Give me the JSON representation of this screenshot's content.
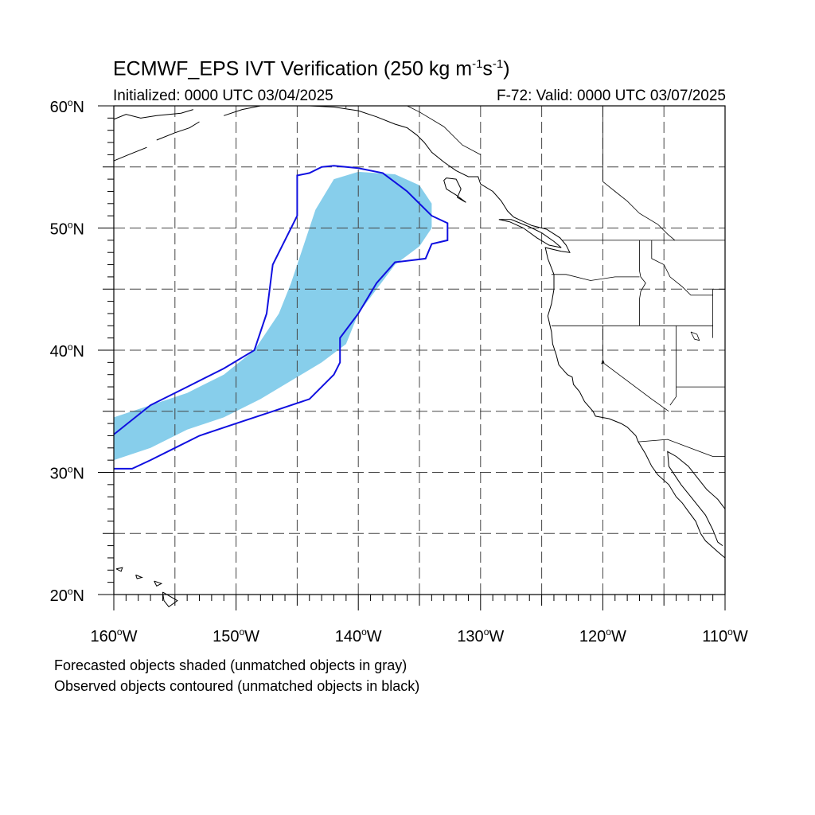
{
  "title": {
    "main": "ECMWF_EPS IVT Verification (250 kg m",
    "exp1": "-1",
    "mid": "s",
    "exp2": "-1",
    "end": ")"
  },
  "initialized": "Initialized: 0000 UTC 03/04/2025",
  "valid": "F-72: Valid: 0000 UTC 03/07/2025",
  "lat_labels": [
    {
      "lat": 60,
      "text": "60",
      "unit": "o",
      "hemi": "N"
    },
    {
      "lat": 50,
      "text": "50",
      "unit": "o",
      "hemi": "N"
    },
    {
      "lat": 40,
      "text": "40",
      "unit": "o",
      "hemi": "N"
    },
    {
      "lat": 30,
      "text": "30",
      "unit": "o",
      "hemi": "N"
    },
    {
      "lat": 20,
      "text": "20",
      "unit": "o",
      "hemi": "N"
    }
  ],
  "lon_labels": [
    {
      "lon": -160,
      "text": "160",
      "unit": "o",
      "hemi": "W"
    },
    {
      "lon": -150,
      "text": "150",
      "unit": "o",
      "hemi": "W"
    },
    {
      "lon": -140,
      "text": "140",
      "unit": "o",
      "hemi": "W"
    },
    {
      "lon": -130,
      "text": "130",
      "unit": "o",
      "hemi": "W"
    },
    {
      "lon": -120,
      "text": "120",
      "unit": "o",
      "hemi": "W"
    },
    {
      "lon": -110,
      "text": "110",
      "unit": "o",
      "hemi": "W"
    }
  ],
  "footnote_1": "Forecasted objects shaded (unmatched objects in gray)",
  "footnote_2": "Observed objects contoured (unmatched objects in black)",
  "colors": {
    "forecast_fill": "#87CEEB",
    "observed_contour": "#1010E0",
    "coastline": "#000000",
    "grid": "#444444"
  },
  "map_extent": {
    "lon_min": -160,
    "lon_max": -110,
    "lat_min": 20,
    "lat_max": 60
  },
  "forecast_object": [
    [
      -160,
      31
    ],
    [
      -160,
      34.5
    ],
    [
      -157,
      35.5
    ],
    [
      -154,
      36.5
    ],
    [
      -151,
      38
    ],
    [
      -148.5,
      40
    ],
    [
      -146.5,
      43
    ],
    [
      -145.5,
      45.5
    ],
    [
      -144.5,
      48.5
    ],
    [
      -143.5,
      51.5
    ],
    [
      -142,
      54
    ],
    [
      -140,
      54.6
    ],
    [
      -137,
      54.4
    ],
    [
      -135,
      53.5
    ],
    [
      -134,
      52
    ],
    [
      -134,
      50
    ],
    [
      -135,
      48.5
    ],
    [
      -137,
      47
    ],
    [
      -138.5,
      45
    ],
    [
      -140,
      43
    ],
    [
      -141,
      40.5
    ],
    [
      -143,
      39
    ],
    [
      -145.5,
      37.5
    ],
    [
      -148,
      36
    ],
    [
      -151,
      34.5
    ],
    [
      -154,
      33.5
    ],
    [
      -157,
      32
    ],
    [
      -160,
      31
    ]
  ],
  "observed_object": [
    [
      -160,
      30.3
    ],
    [
      -158.5,
      30.3
    ],
    [
      -157,
      31
    ],
    [
      -155,
      32
    ],
    [
      -153,
      33
    ],
    [
      -150,
      34
    ],
    [
      -147,
      35
    ],
    [
      -144,
      36
    ],
    [
      -142,
      38
    ],
    [
      -141.5,
      39
    ],
    [
      -141.5,
      41
    ],
    [
      -140,
      43
    ],
    [
      -138.5,
      45.5
    ],
    [
      -137,
      47.2
    ],
    [
      -134.5,
      47.5
    ],
    [
      -134,
      48.7
    ],
    [
      -132.7,
      49
    ],
    [
      -132.7,
      50.4
    ],
    [
      -134,
      51
    ],
    [
      -136,
      53
    ],
    [
      -138,
      54.5
    ],
    [
      -140,
      54.9
    ],
    [
      -142,
      55.1
    ],
    [
      -143,
      55
    ],
    [
      -144,
      54.5
    ],
    [
      -145,
      54.3
    ],
    [
      -145,
      51
    ],
    [
      -146,
      49
    ],
    [
      -147,
      47
    ],
    [
      -147.5,
      43
    ],
    [
      -148.5,
      40
    ],
    [
      -151,
      38.5
    ],
    [
      -154,
      37
    ],
    [
      -157,
      35.5
    ],
    [
      -160,
      33.1
    ]
  ],
  "coastlines": [
    [
      [
        -160,
        58.9
      ],
      [
        -159,
        59.3
      ],
      [
        -157.8,
        59
      ],
      [
        -156.5,
        59.2
      ],
      [
        -154.5,
        59.4
      ],
      [
        -153.5,
        59.7
      ]
    ],
    [
      [
        -156.5,
        57.2
      ],
      [
        -155,
        57.8
      ],
      [
        -153.8,
        58.2
      ],
      [
        -153,
        58.7
      ]
    ],
    [
      [
        -160,
        55.5
      ],
      [
        -158.8,
        56
      ],
      [
        -157.3,
        56.6
      ]
    ],
    [
      [
        -151,
        59.2
      ],
      [
        -149.5,
        59.7
      ],
      [
        -148,
        60
      ],
      [
        -146,
        60
      ],
      [
        -144,
        60
      ],
      [
        -142,
        59.9
      ],
      [
        -140,
        59.6
      ],
      [
        -138.5,
        59.1
      ],
      [
        -137,
        58.5
      ],
      [
        -136,
        58.2
      ],
      [
        -135.2,
        57.6
      ],
      [
        -134.6,
        57
      ],
      [
        -134,
        56.2
      ],
      [
        -133,
        55.4
      ],
      [
        -132,
        54.7
      ],
      [
        -131,
        54.2
      ],
      [
        -130.2,
        54.2
      ],
      [
        -130,
        53.6
      ],
      [
        -129,
        53
      ],
      [
        -128.3,
        52.2
      ],
      [
        -127.8,
        51.4
      ],
      [
        -127.3,
        50.9
      ],
      [
        -125.8,
        50.2
      ],
      [
        -124.6,
        49.9
      ],
      [
        -123.5,
        49.2
      ],
      [
        -123,
        48.6
      ],
      [
        -122.7,
        48
      ],
      [
        -123.4,
        48.1
      ],
      [
        -124.7,
        48.4
      ],
      [
        -124.5,
        47.5
      ],
      [
        -124,
        46.2
      ],
      [
        -124,
        45
      ],
      [
        -124.2,
        43.8
      ],
      [
        -124.5,
        42.8
      ],
      [
        -124.2,
        41.5
      ],
      [
        -124.1,
        40.5
      ],
      [
        -123.8,
        39.6
      ],
      [
        -123.6,
        38.8
      ],
      [
        -122.9,
        38
      ],
      [
        -122.5,
        37.8
      ],
      [
        -122.4,
        37.2
      ],
      [
        -121.9,
        36.6
      ],
      [
        -121.5,
        35.8
      ],
      [
        -120.8,
        35
      ],
      [
        -120.6,
        34.6
      ],
      [
        -119.5,
        34.4
      ],
      [
        -118.5,
        34
      ],
      [
        -118,
        33.7
      ],
      [
        -117.3,
        33
      ],
      [
        -117.1,
        32.5
      ],
      [
        -116.5,
        31.5
      ],
      [
        -116,
        30.5
      ],
      [
        -115.5,
        29.8
      ],
      [
        -114.6,
        29
      ],
      [
        -114,
        28
      ],
      [
        -113.5,
        27.5
      ],
      [
        -113,
        26.8
      ],
      [
        -112.4,
        26
      ],
      [
        -112,
        25
      ],
      [
        -111.6,
        24.4
      ],
      [
        -110.6,
        23.5
      ],
      [
        -110,
        23
      ]
    ],
    [
      [
        -110,
        27
      ],
      [
        -110.6,
        27.8
      ],
      [
        -111.5,
        28.6
      ],
      [
        -112.3,
        29.6
      ],
      [
        -113,
        30.5
      ],
      [
        -114,
        31.3
      ],
      [
        -114.7,
        31.7
      ],
      [
        -114.6,
        30.5
      ],
      [
        -113.6,
        29
      ],
      [
        -112.8,
        28
      ],
      [
        -111.6,
        26.5
      ],
      [
        -111,
        25.3
      ],
      [
        -110.6,
        24.3
      ],
      [
        -110.2,
        24
      ]
    ],
    [
      [
        -132.8,
        54.1
      ],
      [
        -132,
        54
      ],
      [
        -131.6,
        53.2
      ],
      [
        -131.9,
        52.5
      ],
      [
        -131.2,
        52.1
      ],
      [
        -132,
        52.7
      ],
      [
        -132.8,
        53.2
      ],
      [
        -133,
        53.9
      ],
      [
        -132.8,
        54.1
      ]
    ],
    [
      [
        -128.5,
        50.7
      ],
      [
        -127.6,
        50.5
      ],
      [
        -126.5,
        50
      ],
      [
        -125.4,
        49.2
      ],
      [
        -124.4,
        48.6
      ],
      [
        -123.4,
        48.4
      ],
      [
        -124,
        48.9
      ],
      [
        -125,
        49.6
      ],
      [
        -126,
        50.1
      ],
      [
        -127.5,
        50.7
      ],
      [
        -128.5,
        50.7
      ]
    ],
    [
      [
        -159.8,
        22.1
      ],
      [
        -159.3,
        22.2
      ],
      [
        -159.4,
        21.9
      ],
      [
        -159.8,
        22.1
      ]
    ],
    [
      [
        -158.2,
        21.6
      ],
      [
        -157.7,
        21.4
      ],
      [
        -158.1,
        21.3
      ],
      [
        -158.2,
        21.6
      ]
    ],
    [
      [
        -156.7,
        21.1
      ],
      [
        -156.1,
        20.9
      ],
      [
        -156.5,
        20.7
      ],
      [
        -156.7,
        21.1
      ]
    ],
    [
      [
        -156,
        20.2
      ],
      [
        -154.8,
        19.5
      ],
      [
        -155.5,
        19
      ],
      [
        -155.9,
        19.5
      ],
      [
        -156,
        20.2
      ]
    ]
  ],
  "boundaries": [
    [
      [
        -141,
        60
      ],
      [
        -141,
        59.8
      ]
    ],
    [
      [
        -130,
        56
      ],
      [
        -131.5,
        56.8
      ],
      [
        -133,
        58.3
      ],
      [
        -135,
        59.5
      ],
      [
        -136,
        60
      ]
    ],
    [
      [
        -123.3,
        49
      ],
      [
        -110,
        49
      ]
    ],
    [
      [
        -120,
        60
      ],
      [
        -120,
        53.8
      ],
      [
        -119,
        53
      ],
      [
        -118,
        52.2
      ],
      [
        -117,
        51.2
      ],
      [
        -115.5,
        50.3
      ],
      [
        -114.7,
        49.5
      ],
      [
        -114.1,
        49
      ]
    ],
    [
      [
        -117,
        49
      ],
      [
        -117,
        46.5
      ],
      [
        -116.9,
        46
      ],
      [
        -116.5,
        45.5
      ],
      [
        -116.9,
        44.8
      ],
      [
        -117,
        44.2
      ],
      [
        -117,
        42
      ]
    ],
    [
      [
        -124.2,
        46.2
      ],
      [
        -123,
        46.2
      ],
      [
        -121,
        45.7
      ],
      [
        -119,
        46
      ],
      [
        -117,
        46
      ]
    ],
    [
      [
        -116,
        49
      ],
      [
        -116,
        47.5
      ],
      [
        -115,
        47
      ],
      [
        -114.5,
        46
      ],
      [
        -113.5,
        45.2
      ],
      [
        -112.8,
        44.5
      ],
      [
        -111,
        44.5
      ]
    ],
    [
      [
        -124.2,
        42
      ],
      [
        -111,
        42
      ]
    ],
    [
      [
        -120,
        42
      ],
      [
        -120,
        39
      ],
      [
        -118,
        37.5
      ],
      [
        -116,
        36
      ],
      [
        -114.6,
        35
      ]
    ],
    [
      [
        -114,
        42
      ],
      [
        -114,
        36.2
      ],
      [
        -114.5,
        35.5
      ]
    ],
    [
      [
        -114,
        37
      ],
      [
        -110,
        37
      ]
    ],
    [
      [
        -111,
        45
      ],
      [
        -110,
        45
      ]
    ],
    [
      [
        -111,
        45
      ],
      [
        -111,
        41
      ]
    ],
    [
      [
        -117.1,
        32.5
      ],
      [
        -114.7,
        32.7
      ],
      [
        -111,
        31.3
      ],
      [
        -110,
        31.3
      ]
    ]
  ],
  "lakes": [
    [
      [
        -112.8,
        41.5
      ],
      [
        -112.3,
        41.3
      ],
      [
        -112.1,
        40.8
      ],
      [
        -112.5,
        40.9
      ],
      [
        -112.8,
        41.5
      ]
    ],
    [
      [
        -120,
        39.2
      ],
      [
        -119.9,
        39
      ],
      [
        -120.1,
        38.9
      ],
      [
        -120,
        39.2
      ]
    ]
  ]
}
